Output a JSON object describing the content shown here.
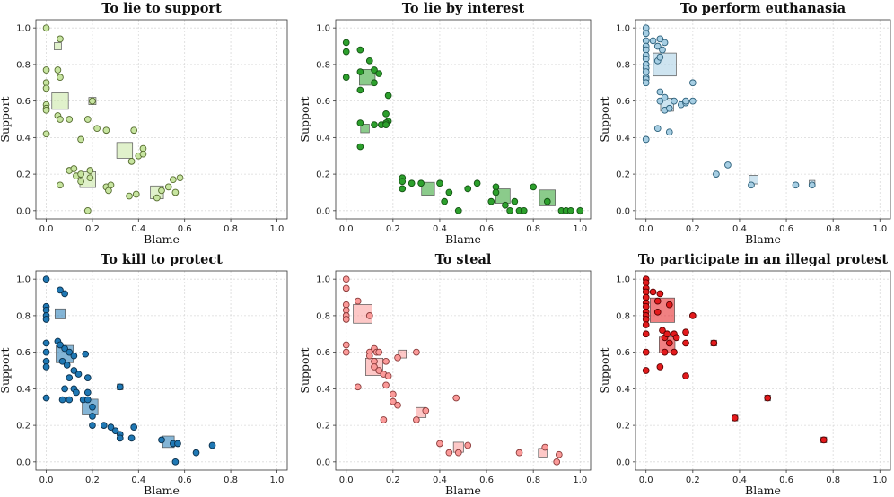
{
  "colors": {
    "panels": [
      {
        "fill": "#c7e5a0",
        "edge": "#556b2f",
        "box": "#c7e5a0"
      },
      {
        "fill": "#2ca02c",
        "edge": "#145214",
        "box": "#2ca02c"
      },
      {
        "fill": "#a6cee3",
        "edge": "#2b5f7a",
        "box": "#a6cee3"
      },
      {
        "fill": "#1f78b4",
        "edge": "#0b2f4a",
        "box": "#1f78b4"
      },
      {
        "fill": "#fb9a99",
        "edge": "#8a3b3a",
        "box": "#fb9a99"
      },
      {
        "fill": "#e31a1c",
        "edge": "#5a0000",
        "box": "#e31a1c"
      }
    ]
  },
  "chart_data": [
    {
      "type": "scatter",
      "title": "To lie to support",
      "xlabel": "Blame",
      "ylabel": "Support",
      "xlim": [
        0,
        1
      ],
      "ylim": [
        0,
        1
      ],
      "xticks": [
        "0.0",
        "0.2",
        "0.4",
        "0.6",
        "0.8",
        "1.0"
      ],
      "yticks": [
        "0.0",
        "0.2",
        "0.4",
        "0.6",
        "0.8",
        "1.0"
      ],
      "points": [
        [
          0,
          1
        ],
        [
          0.06,
          0.94
        ],
        [
          0.0,
          0.77
        ],
        [
          0.05,
          0.77
        ],
        [
          0.06,
          0.73
        ],
        [
          0.0,
          0.7
        ],
        [
          0.0,
          0.67
        ],
        [
          0.0,
          0.58
        ],
        [
          0.0,
          0.56
        ],
        [
          0.0,
          0.55
        ],
        [
          0.05,
          0.52
        ],
        [
          0.06,
          0.5
        ],
        [
          0.1,
          0.5
        ],
        [
          0.18,
          0.5
        ],
        [
          0.2,
          0.6
        ],
        [
          0.0,
          0.42
        ],
        [
          0.22,
          0.45
        ],
        [
          0.26,
          0.44
        ],
        [
          0.15,
          0.39
        ],
        [
          0.38,
          0.44
        ],
        [
          0.06,
          0.14
        ],
        [
          0.1,
          0.22
        ],
        [
          0.12,
          0.23
        ],
        [
          0.13,
          0.19
        ],
        [
          0.15,
          0.2
        ],
        [
          0.15,
          0.16
        ],
        [
          0.19,
          0.22
        ],
        [
          0.19,
          0.18
        ],
        [
          0.18,
          0.0
        ],
        [
          0.26,
          0.13
        ],
        [
          0.27,
          0.11
        ],
        [
          0.28,
          0.14
        ],
        [
          0.36,
          0.08
        ],
        [
          0.37,
          0.27
        ],
        [
          0.39,
          0.09
        ],
        [
          0.4,
          0.3
        ],
        [
          0.42,
          0.34
        ],
        [
          0.42,
          0.31
        ],
        [
          0.48,
          0.07
        ],
        [
          0.5,
          0.11
        ],
        [
          0.53,
          0.13
        ],
        [
          0.55,
          0.17
        ],
        [
          0.56,
          0.1
        ],
        [
          0.58,
          0.18
        ]
      ],
      "boxes": [
        [
          0.05,
          0.9,
          1
        ],
        [
          0.06,
          0.6,
          2.3
        ],
        [
          0.2,
          0.6,
          1
        ],
        [
          0.34,
          0.33,
          2.2
        ],
        [
          0.18,
          0.17,
          2.2
        ],
        [
          0.48,
          0.1,
          1.8
        ]
      ]
    },
    {
      "type": "scatter",
      "title": "To lie by interest",
      "xlabel": "Blame",
      "ylabel": "Support",
      "xlim": [
        0,
        1
      ],
      "ylim": [
        0,
        1
      ],
      "xticks": [
        "0.0",
        "0.2",
        "0.4",
        "0.6",
        "0.8",
        "1.0"
      ],
      "yticks": [
        "0.0",
        "0.2",
        "0.4",
        "0.6",
        "0.8",
        "1.0"
      ],
      "points": [
        [
          0,
          0.92
        ],
        [
          0.06,
          0.88
        ],
        [
          0,
          0.87
        ],
        [
          0.1,
          0.82
        ],
        [
          0.0,
          0.73
        ],
        [
          0.06,
          0.76
        ],
        [
          0.12,
          0.77
        ],
        [
          0.14,
          0.75
        ],
        [
          0.12,
          0.7
        ],
        [
          0.06,
          0.66
        ],
        [
          0.18,
          0.63
        ],
        [
          0.15,
          0.47
        ],
        [
          0.17,
          0.53
        ],
        [
          0.18,
          0.49
        ],
        [
          0.17,
          0.48
        ],
        [
          0.06,
          0.48
        ],
        [
          0.12,
          0.47
        ],
        [
          0.17,
          0.47
        ],
        [
          0.06,
          0.35
        ],
        [
          0.24,
          0.18
        ],
        [
          0.24,
          0.16
        ],
        [
          0.24,
          0.12
        ],
        [
          0.28,
          0.15
        ],
        [
          0.32,
          0.15
        ],
        [
          0.4,
          0.15
        ],
        [
          0.44,
          0.1
        ],
        [
          0.42,
          0.05
        ],
        [
          0.48,
          0.0
        ],
        [
          0.52,
          0.12
        ],
        [
          0.56,
          0.15
        ],
        [
          0.62,
          0.05
        ],
        [
          0.64,
          0.13
        ],
        [
          0.64,
          0.1
        ],
        [
          0.68,
          0.03
        ],
        [
          0.7,
          0.0
        ],
        [
          0.72,
          0.05
        ],
        [
          0.74,
          0.0
        ],
        [
          0.76,
          0.0
        ],
        [
          0.8,
          0.13
        ],
        [
          0.86,
          0.05
        ],
        [
          0.92,
          0.0
        ],
        [
          0.94,
          0.0
        ],
        [
          0.96,
          0.0
        ],
        [
          1.0,
          0.0
        ]
      ],
      "boxes": [
        [
          0.09,
          0.73,
          2.2
        ],
        [
          0.08,
          0.45,
          1.2
        ],
        [
          0.35,
          0.12,
          1.8
        ],
        [
          0.67,
          0.08,
          2.0
        ],
        [
          0.86,
          0.07,
          2.2
        ]
      ]
    },
    {
      "type": "scatter",
      "title": "To perform euthanasia",
      "xlabel": "Blame",
      "ylabel": "Support",
      "xlim": [
        0,
        1
      ],
      "ylim": [
        0,
        1
      ],
      "xticks": [
        "0.0",
        "0.2",
        "0.4",
        "0.6",
        "0.8",
        "1.0"
      ],
      "yticks": [
        "0.0",
        "0.2",
        "0.4",
        "0.6",
        "0.8",
        "1.0"
      ],
      "points": [
        [
          0,
          1
        ],
        [
          0,
          0.97
        ],
        [
          0,
          0.93
        ],
        [
          0,
          0.9
        ],
        [
          0,
          0.88
        ],
        [
          0,
          0.85
        ],
        [
          0,
          0.83
        ],
        [
          0,
          0.8
        ],
        [
          0,
          0.78
        ],
        [
          0,
          0.76
        ],
        [
          0,
          0.73
        ],
        [
          0,
          0.72
        ],
        [
          0,
          0.7
        ],
        [
          0.03,
          0.93
        ],
        [
          0.05,
          0.9
        ],
        [
          0.06,
          0.94
        ],
        [
          0.07,
          0.88
        ],
        [
          0.08,
          0.92
        ],
        [
          0.05,
          0.82
        ],
        [
          0.06,
          0.84
        ],
        [
          0.06,
          0.6
        ],
        [
          0.06,
          0.65
        ],
        [
          0.08,
          0.62
        ],
        [
          0.08,
          0.55
        ],
        [
          0.1,
          0.56
        ],
        [
          0.12,
          0.6
        ],
        [
          0.15,
          0.58
        ],
        [
          0.17,
          0.59
        ],
        [
          0.17,
          0.6
        ],
        [
          0.2,
          0.6
        ],
        [
          0.2,
          0.7
        ],
        [
          0.05,
          0.45
        ],
        [
          0.1,
          0.43
        ],
        [
          0.0,
          0.39
        ],
        [
          0.3,
          0.2
        ],
        [
          0.35,
          0.25
        ],
        [
          0.45,
          0.14
        ],
        [
          0.64,
          0.14
        ],
        [
          0.71,
          0.14
        ]
      ],
      "boxes": [
        [
          0.08,
          0.8,
          3.2
        ],
        [
          0.09,
          0.58,
          1.8
        ],
        [
          0.46,
          0.17,
          1.2
        ],
        [
          0.71,
          0.15,
          0.8
        ]
      ]
    },
    {
      "type": "scatter",
      "title": "To kill to protect",
      "xlabel": "Blame",
      "ylabel": "Support",
      "xlim": [
        0,
        1
      ],
      "ylim": [
        0,
        1
      ],
      "xticks": [
        "0.0",
        "0.2",
        "0.4",
        "0.6",
        "0.8",
        "1.0"
      ],
      "yticks": [
        "0.0",
        "0.2",
        "0.4",
        "0.6",
        "0.8",
        "1.0"
      ],
      "points": [
        [
          0,
          1
        ],
        [
          0.06,
          0.94
        ],
        [
          0.08,
          0.92
        ],
        [
          0,
          0.85
        ],
        [
          0,
          0.83
        ],
        [
          0,
          0.8
        ],
        [
          0,
          0.78
        ],
        [
          0,
          0.65
        ],
        [
          0,
          0.6
        ],
        [
          0,
          0.55
        ],
        [
          0,
          0.52
        ],
        [
          0.05,
          0.66
        ],
        [
          0.06,
          0.64
        ],
        [
          0.08,
          0.62
        ],
        [
          0.1,
          0.6
        ],
        [
          0.12,
          0.58
        ],
        [
          0.17,
          0.59
        ],
        [
          0.07,
          0.55
        ],
        [
          0.09,
          0.53
        ],
        [
          0.12,
          0.5
        ],
        [
          0.1,
          0.46
        ],
        [
          0.14,
          0.48
        ],
        [
          0.18,
          0.46
        ],
        [
          0.08,
          0.4
        ],
        [
          0.12,
          0.4
        ],
        [
          0.13,
          0.38
        ],
        [
          0.18,
          0.38
        ],
        [
          0.07,
          0.34
        ],
        [
          0.1,
          0.34
        ],
        [
          0.16,
          0.34
        ],
        [
          0.18,
          0.34
        ],
        [
          0.0,
          0.35
        ],
        [
          0.2,
          0.3
        ],
        [
          0.2,
          0.25
        ],
        [
          0.2,
          0.2
        ],
        [
          0.25,
          0.2
        ],
        [
          0.28,
          0.19
        ],
        [
          0.3,
          0.17
        ],
        [
          0.32,
          0.15
        ],
        [
          0.32,
          0.13
        ],
        [
          0.32,
          0.41
        ],
        [
          0.37,
          0.13
        ],
        [
          0.38,
          0.19
        ],
        [
          0.5,
          0.12
        ],
        [
          0.55,
          0.1
        ],
        [
          0.57,
          0.1
        ],
        [
          0.56,
          0.0
        ],
        [
          0.65,
          0.05
        ],
        [
          0.72,
          0.09
        ]
      ],
      "boxes": [
        [
          0.06,
          0.81,
          1.4
        ],
        [
          0.08,
          0.59,
          2.4
        ],
        [
          0.19,
          0.3,
          2.2
        ],
        [
          0.32,
          0.41,
          0.8
        ],
        [
          0.53,
          0.11,
          1.6
        ]
      ]
    },
    {
      "type": "scatter",
      "title": "To steal",
      "xlabel": "Blame",
      "ylabel": "Support",
      "xlim": [
        0,
        1
      ],
      "ylim": [
        0,
        1
      ],
      "xticks": [
        "0.0",
        "0.2",
        "0.4",
        "0.6",
        "0.8",
        "1.0"
      ],
      "yticks": [
        "0.0",
        "0.2",
        "0.4",
        "0.6",
        "0.8",
        "1.0"
      ],
      "points": [
        [
          0,
          1
        ],
        [
          0,
          0.95
        ],
        [
          0.05,
          0.88
        ],
        [
          0,
          0.86
        ],
        [
          0,
          0.83
        ],
        [
          0,
          0.8
        ],
        [
          0,
          0.78
        ],
        [
          0,
          0.64
        ],
        [
          0,
          0.6
        ],
        [
          0.1,
          0.8
        ],
        [
          0.1,
          0.6
        ],
        [
          0.12,
          0.62
        ],
        [
          0.13,
          0.6
        ],
        [
          0.14,
          0.6
        ],
        [
          0.1,
          0.58
        ],
        [
          0.12,
          0.55
        ],
        [
          0.17,
          0.55
        ],
        [
          0.12,
          0.52
        ],
        [
          0.14,
          0.5
        ],
        [
          0.16,
          0.48
        ],
        [
          0.18,
          0.47
        ],
        [
          0.05,
          0.41
        ],
        [
          0.17,
          0.42
        ],
        [
          0.2,
          0.37
        ],
        [
          0.2,
          0.33
        ],
        [
          0.22,
          0.31
        ],
        [
          0.16,
          0.23
        ],
        [
          0.22,
          0.57
        ],
        [
          0.3,
          0.6
        ],
        [
          0.3,
          0.23
        ],
        [
          0.34,
          0.28
        ],
        [
          0.4,
          0.1
        ],
        [
          0.44,
          0.05
        ],
        [
          0.47,
          0.35
        ],
        [
          0.48,
          0.05
        ],
        [
          0.52,
          0.09
        ],
        [
          0.74,
          0.05
        ],
        [
          0.85,
          0.08
        ],
        [
          0.9,
          0.0
        ],
        [
          0.91,
          0.04
        ]
      ],
      "boxes": [
        [
          0.07,
          0.81,
          2.6
        ],
        [
          0.12,
          0.52,
          2.4
        ],
        [
          0.24,
          0.59,
          1.1
        ],
        [
          0.32,
          0.27,
          1.4
        ],
        [
          0.48,
          0.08,
          1.4
        ],
        [
          0.84,
          0.05,
          1.2
        ]
      ]
    },
    {
      "type": "scatter",
      "title": "To participate in an illegal protest",
      "xlabel": "Blame",
      "ylabel": "Support",
      "xlim": [
        0,
        1
      ],
      "ylim": [
        0,
        1
      ],
      "xticks": [
        "0.0",
        "0.2",
        "0.4",
        "0.6",
        "0.8",
        "1.0"
      ],
      "yticks": [
        "0.0",
        "0.2",
        "0.4",
        "0.6",
        "0.8",
        "1.0"
      ],
      "points": [
        [
          0,
          1
        ],
        [
          0,
          0.98
        ],
        [
          0,
          0.95
        ],
        [
          0,
          0.93
        ],
        [
          0,
          0.9
        ],
        [
          0,
          0.87
        ],
        [
          0,
          0.85
        ],
        [
          0,
          0.82
        ],
        [
          0,
          0.8
        ],
        [
          0,
          0.78
        ],
        [
          0,
          0.75
        ],
        [
          0,
          0.7
        ],
        [
          0,
          0.6
        ],
        [
          0,
          0.5
        ],
        [
          0.03,
          0.93
        ],
        [
          0.05,
          0.88
        ],
        [
          0.06,
          0.92
        ],
        [
          0.05,
          0.82
        ],
        [
          0.1,
          0.86
        ],
        [
          0.07,
          0.72
        ],
        [
          0.08,
          0.68
        ],
        [
          0.09,
          0.7
        ],
        [
          0.1,
          0.65
        ],
        [
          0.12,
          0.7
        ],
        [
          0.13,
          0.68
        ],
        [
          0.08,
          0.6
        ],
        [
          0.12,
          0.6
        ],
        [
          0.17,
          0.65
        ],
        [
          0.17,
          0.71
        ],
        [
          0.2,
          0.8
        ],
        [
          0.06,
          0.52
        ],
        [
          0.17,
          0.47
        ],
        [
          0.29,
          0.65
        ],
        [
          0.38,
          0.24
        ],
        [
          0.52,
          0.35
        ],
        [
          0.76,
          0.12
        ]
      ],
      "boxes": [
        [
          0.07,
          0.83,
          3.4
        ],
        [
          0.09,
          0.64,
          2.2
        ],
        [
          0.29,
          0.65,
          0.8
        ],
        [
          0.38,
          0.24,
          0.8
        ],
        [
          0.52,
          0.35,
          0.8
        ],
        [
          0.76,
          0.12,
          0.8
        ]
      ]
    }
  ]
}
